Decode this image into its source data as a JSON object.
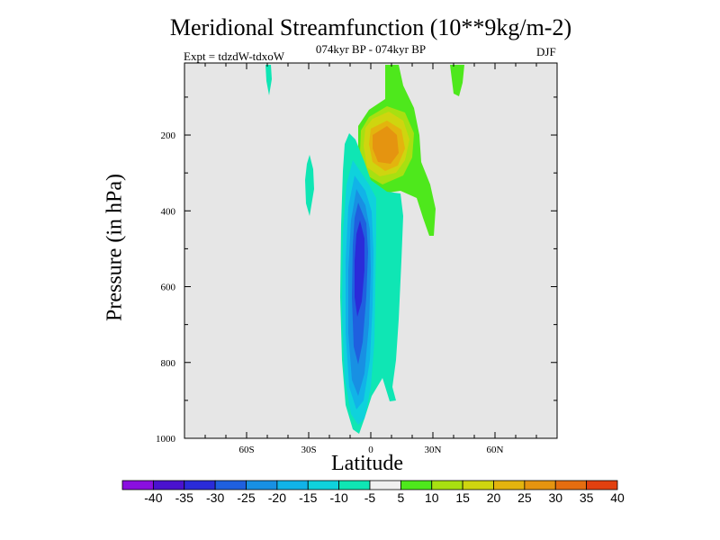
{
  "chart_data": {
    "type": "contour",
    "title": "Meridional Streamfunction (10**9kg/m-2)",
    "subtitle": "074kyr BP - 074kyr BP",
    "experiment": "Expt = tdzdW-tdxoW",
    "season": "DJF",
    "xlabel": "Latitude",
    "ylabel": "Pressure (in hPa)",
    "x_ticks": [
      "60S",
      "30S",
      "0",
      "30N",
      "60N"
    ],
    "x_tick_values": [
      -60,
      -30,
      0,
      30,
      60
    ],
    "xlim": [
      -90,
      90
    ],
    "y_ticks": [
      "200",
      "400",
      "600",
      "800",
      "1000"
    ],
    "y_tick_values": [
      200,
      400,
      600,
      800,
      1000
    ],
    "ylim": [
      10,
      1000
    ],
    "plot_background": "#e6e6e6",
    "colorbar": {
      "labels": [
        "-40",
        "-35",
        "-30",
        "-25",
        "-20",
        "-15",
        "-10",
        "-5",
        "5",
        "10",
        "15",
        "20",
        "25",
        "30",
        "35",
        "40"
      ],
      "colors": [
        "#8a0fe0",
        "#4a12cf",
        "#2a2bd9",
        "#1f60df",
        "#1890e3",
        "#11b3e8",
        "#0fd2dc",
        "#0fe6b4",
        "#f0f0f0",
        "#4ee81c",
        "#a8e011",
        "#cfd50f",
        "#e3b40e",
        "#e59410",
        "#e56d10",
        "#e2400f"
      ]
    },
    "features": [
      {
        "name": "deep negative cell",
        "level": "-30",
        "lat_range": [
          -10,
          0
        ],
        "pressure_range": [
          380,
          700
        ]
      },
      {
        "name": "negative cell",
        "level": "-20",
        "lat_range": [
          -15,
          5
        ],
        "pressure_range": [
          290,
          960
        ]
      },
      {
        "name": "positive cell",
        "level": "25",
        "lat_range": [
          -5,
          10
        ],
        "pressure_range": [
          150,
          230
        ]
      },
      {
        "name": "positive region",
        "level": "10",
        "lat_range": [
          -5,
          20
        ],
        "pressure_range": [
          10,
          320
        ]
      }
    ]
  }
}
